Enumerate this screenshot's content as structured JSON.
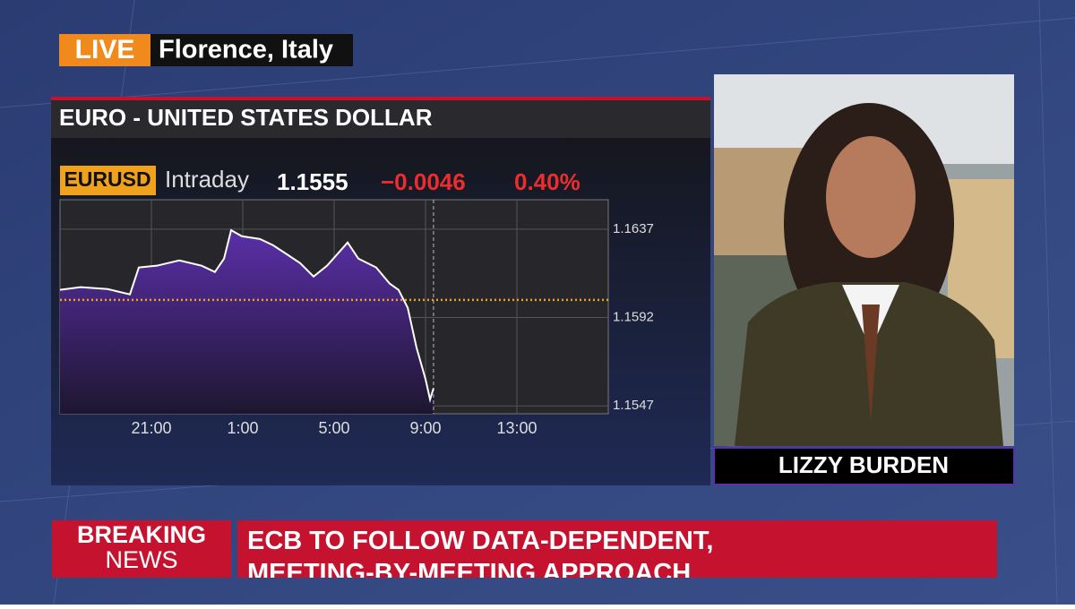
{
  "broadcast": {
    "live": "LIVE",
    "location": "Florence, Italy",
    "speaker": "LIZZY BURDEN",
    "breaking_line1": "BREAKING",
    "breaking_line2": "NEWS",
    "headline": "ECB TO FOLLOW DATA-DEPENDENT, MEETING-BY-MEETING APPROACH"
  },
  "chart_data": {
    "type": "line",
    "title": "EURO - UNITED STATES DOLLAR",
    "quote": {
      "symbol": "EURUSD",
      "period": "Intraday",
      "last": "1.1555",
      "change": "−0.0046",
      "change_pct": "0.40%"
    },
    "x": [
      17,
      17.9,
      19.08,
      20.06,
      20.45,
      21.24,
      22.22,
      23.2,
      23.78,
      24.18,
      24.49,
      24.96,
      25.75,
      26.33,
      26.92,
      27.51,
      28.1,
      28.69,
      29.59,
      30.06,
      30.84,
      31.43,
      31.82,
      32.22,
      32.61,
      33.0,
      33.2,
      33.35
    ],
    "values": [
      1.16061,
      1.16075,
      1.16065,
      1.16038,
      1.16175,
      1.16184,
      1.16211,
      1.16184,
      1.16152,
      1.1622,
      1.16365,
      1.16334,
      1.1632,
      1.16288,
      1.16243,
      1.16197,
      1.16129,
      1.16184,
      1.16302,
      1.1622,
      1.16175,
      1.16093,
      1.16061,
      1.1597,
      1.15765,
      1.15606,
      1.15502,
      1.1556
    ],
    "color": "#ffffff",
    "fill_color": "#4b2a8c",
    "previous_close": 1.1601,
    "xlim": [
      17,
      41
    ],
    "xticks": [
      {
        "value": 21,
        "label": "21:00"
      },
      {
        "value": 25,
        "label": "1:00"
      },
      {
        "value": 29,
        "label": "5:00"
      },
      {
        "value": 33,
        "label": "9:00"
      },
      {
        "value": 37,
        "label": "13:00"
      }
    ],
    "ylim": [
      1.1543,
      1.1652
    ],
    "yticks": [
      1.1547,
      1.1592,
      1.1637
    ],
    "grid": true
  }
}
